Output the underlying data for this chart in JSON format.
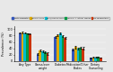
{
  "legend_labels": [
    "With Diabetes",
    "Insulin Only",
    "Pills/Insulin Only",
    "Insulin + Other Hands",
    "No Medication"
  ],
  "bar_colors": [
    "#3355bb",
    "#ddaa00",
    "#00bbcc",
    "#009944",
    "#cc3300"
  ],
  "categories": [
    "Any Type",
    "Obese/over\nweight",
    "Diabetes",
    "Medication/Other\nBodies",
    "Dietary\nCounseling"
  ],
  "series": [
    [
      88,
      22,
      75,
      35,
      9
    ],
    [
      90,
      33,
      82,
      44,
      11
    ],
    [
      88,
      30,
      88,
      38,
      11
    ],
    [
      86,
      27,
      78,
      42,
      12
    ],
    [
      85,
      23,
      73,
      40,
      10
    ]
  ],
  "ylim": [
    0,
    110
  ],
  "ylabel": "Prevalence (%)",
  "yticks": [
    0,
    20,
    40,
    60,
    80,
    100
  ],
  "error_bars": [
    [
      2,
      3,
      3,
      3,
      1
    ],
    [
      2,
      4,
      3,
      4,
      2
    ],
    [
      2,
      4,
      3,
      3,
      2
    ],
    [
      2,
      3,
      3,
      3,
      2
    ],
    [
      2,
      3,
      3,
      3,
      1
    ]
  ],
  "figsize": [
    1.26,
    0.8
  ],
  "dpi": 100,
  "bg_color": "#e8e8e8",
  "plot_bg": "#e8e8e8"
}
